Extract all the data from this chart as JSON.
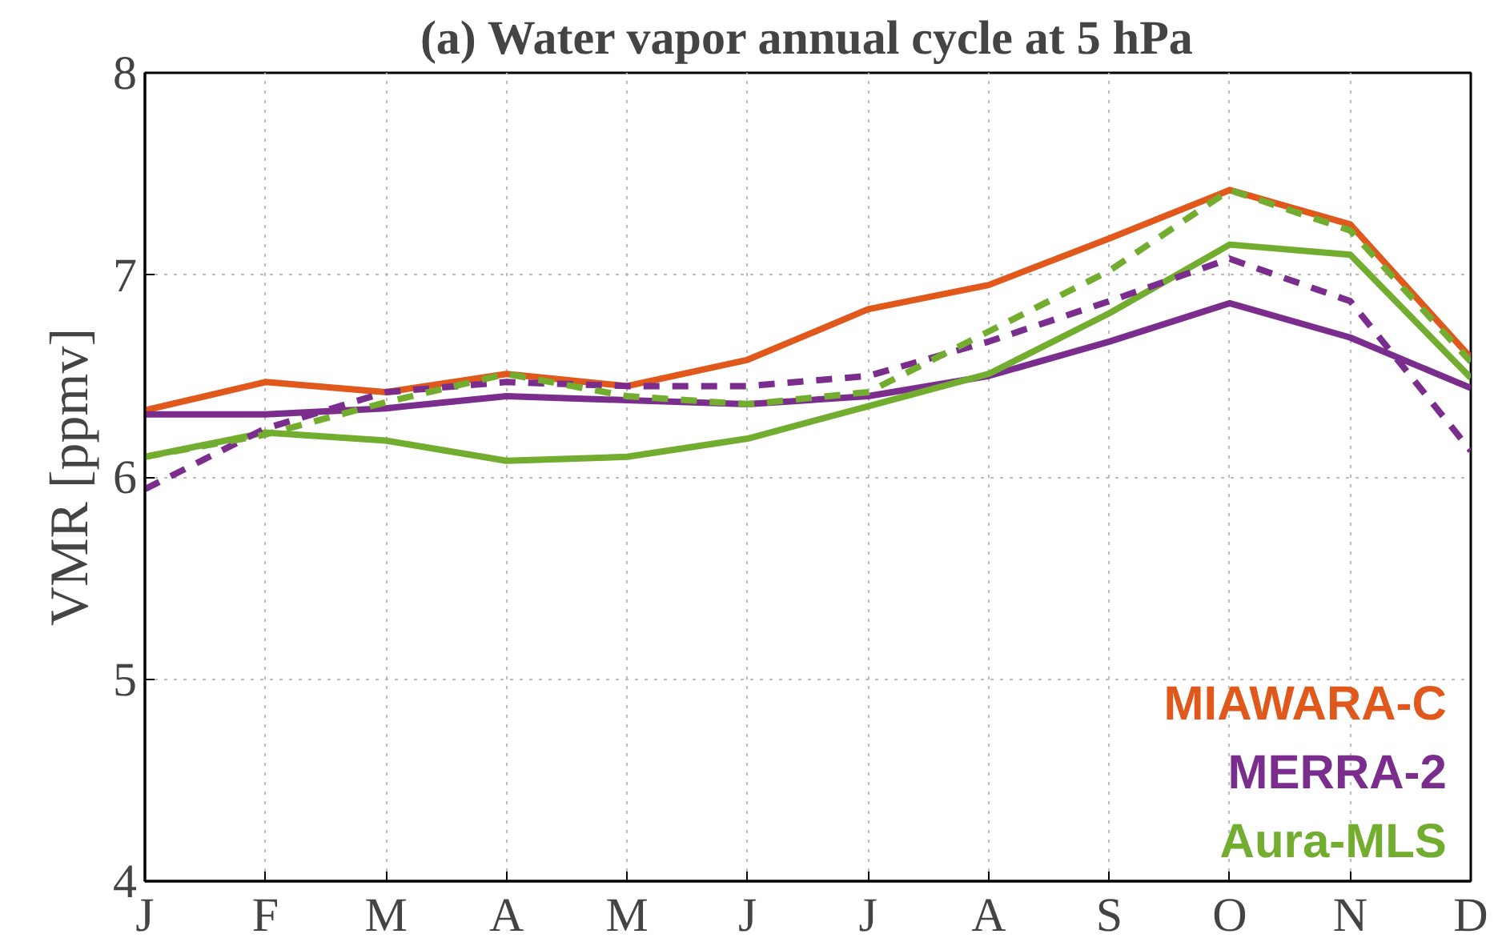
{
  "chart_data": {
    "type": "line",
    "title": "(a) Water vapor annual cycle at 5 hPa",
    "ylabel": "VMR [ppmv]",
    "categories": [
      "J",
      "F",
      "M",
      "A",
      "M",
      "J",
      "J",
      "A",
      "S",
      "O",
      "N",
      "D"
    ],
    "ylim": [
      4,
      8
    ],
    "yticks": [
      4,
      5,
      6,
      7,
      8
    ],
    "grid": true,
    "legend": "bottom right",
    "marker": "none",
    "series": [
      {
        "name": "MIAWARA-C",
        "color": "#e0581c",
        "line_style": "solid",
        "values": [
          6.33,
          6.47,
          6.42,
          6.51,
          6.45,
          6.58,
          6.83,
          6.95,
          7.18,
          7.42,
          7.25,
          6.59
        ]
      },
      {
        "name": "MERRA-2",
        "color": "#7b2d8e",
        "line_style": "solid",
        "values": [
          6.31,
          6.31,
          6.34,
          6.4,
          6.38,
          6.36,
          6.4,
          6.5,
          6.67,
          6.86,
          6.69,
          6.44
        ]
      },
      {
        "name": "Aura-MLS",
        "color": "#72ad2f",
        "line_style": "solid",
        "values": [
          6.1,
          6.22,
          6.18,
          6.08,
          6.1,
          6.19,
          6.35,
          6.51,
          6.81,
          7.15,
          7.1,
          6.49
        ]
      },
      {
        "color": "#7b2d8e",
        "line_style": "dashed",
        "values": [
          5.94,
          6.24,
          6.42,
          6.47,
          6.45,
          6.45,
          6.5,
          6.67,
          6.87,
          7.08,
          6.87,
          6.13
        ]
      },
      {
        "color": "#72ad2f",
        "line_style": "dashed",
        "values": [
          6.1,
          6.21,
          6.37,
          6.51,
          6.4,
          6.36,
          6.42,
          6.72,
          7.02,
          7.42,
          7.22,
          6.57
        ]
      }
    ]
  }
}
